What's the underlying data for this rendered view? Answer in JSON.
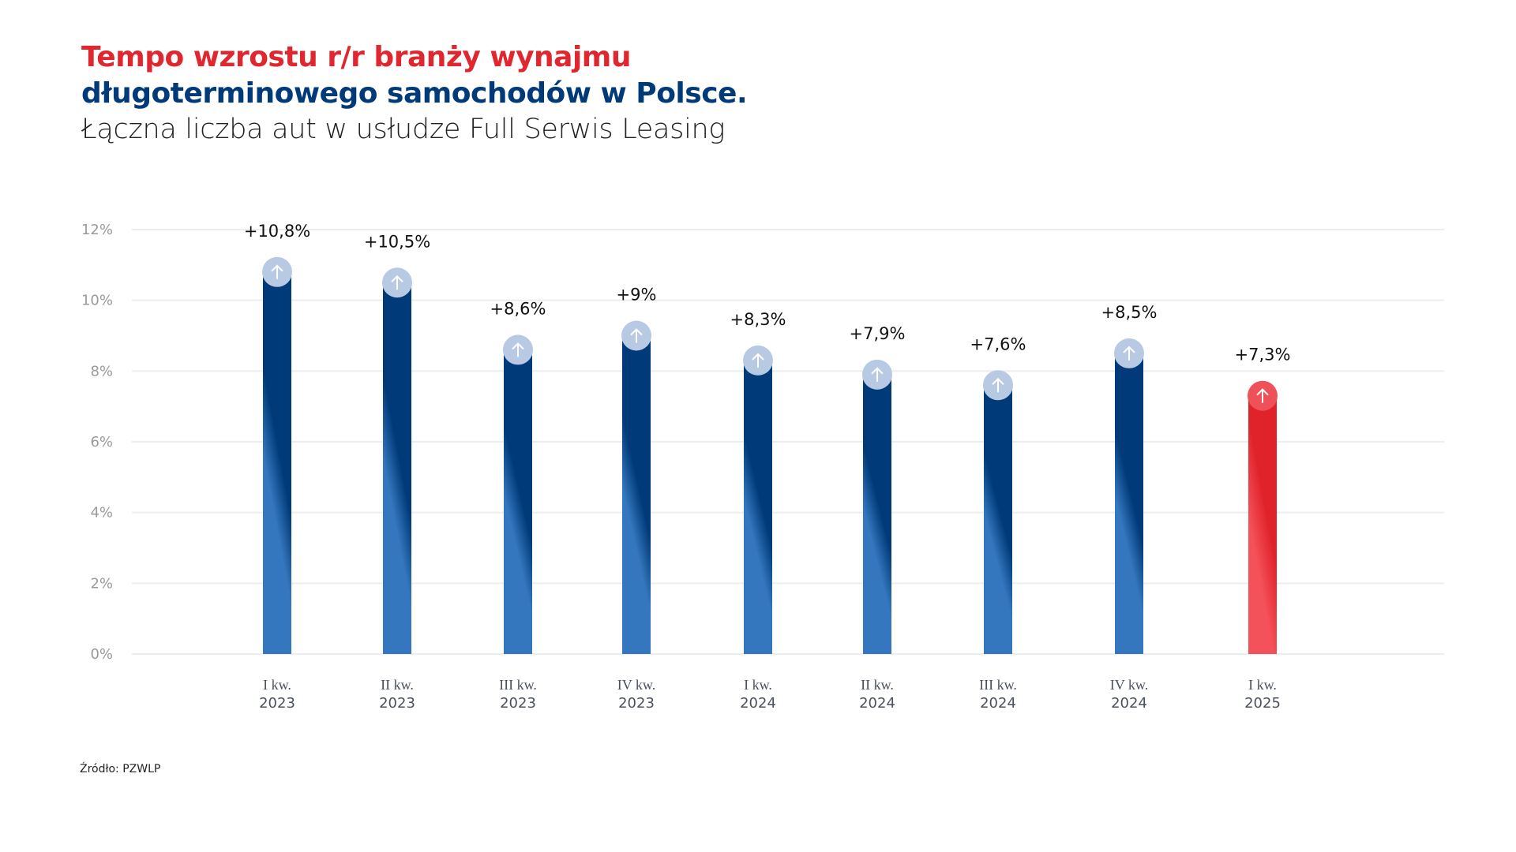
{
  "title_line1": "Tempo wzrostu r/r branży wynajmu",
  "title_line2": "długoterminowego samochodów w Polsce.",
  "subtitle": "Łączna liczba aut w usłudze Full Serwis Leasing",
  "source": "Źródło: PZWLP",
  "colors": {
    "title_red": "#e0262e",
    "title_blue": "#003a78",
    "bar_dark": "#003a78",
    "bar_light": "#3577be",
    "highlight_red": "#e0222a",
    "highlight_light": "#f4525a",
    "marker": "#b8c9e3"
  },
  "chart_data": {
    "type": "bar",
    "title": "Tempo wzrostu r/r branży wynajmu długoterminowego samochodów w Polsce.",
    "subtitle": "Łączna liczba aut w usłudze Full Serwis Leasing",
    "categories": [
      [
        "I kw.",
        "2023"
      ],
      [
        "II kw.",
        "2023"
      ],
      [
        "III kw.",
        "2023"
      ],
      [
        "IV kw.",
        "2023"
      ],
      [
        "I kw.",
        "2024"
      ],
      [
        "II kw.",
        "2024"
      ],
      [
        "III kw.",
        "2024"
      ],
      [
        "IV kw.",
        "2024"
      ],
      [
        "I kw.",
        "2025"
      ]
    ],
    "values": [
      10.8,
      10.5,
      8.6,
      9,
      8.3,
      7.9,
      7.6,
      8.5,
      7.3
    ],
    "data_labels": [
      "+10,8%",
      "+10,5%",
      "+8,6%",
      "+9%",
      "+8,3%",
      "+7,9%",
      "+7,6%",
      "+8,5%",
      "+7,3%"
    ],
    "highlighted": [
      false,
      false,
      false,
      false,
      false,
      false,
      false,
      false,
      true
    ],
    "marker_icon": "arrow-up-icon",
    "yticks": [
      0,
      2,
      4,
      6,
      8,
      10,
      12
    ],
    "ytick_labels": [
      "0%",
      "2%",
      "4%",
      "6%",
      "8%",
      "10%",
      "12%"
    ],
    "ylim": [
      0,
      12
    ],
    "grid": true,
    "xlabel": "",
    "ylabel": ""
  }
}
